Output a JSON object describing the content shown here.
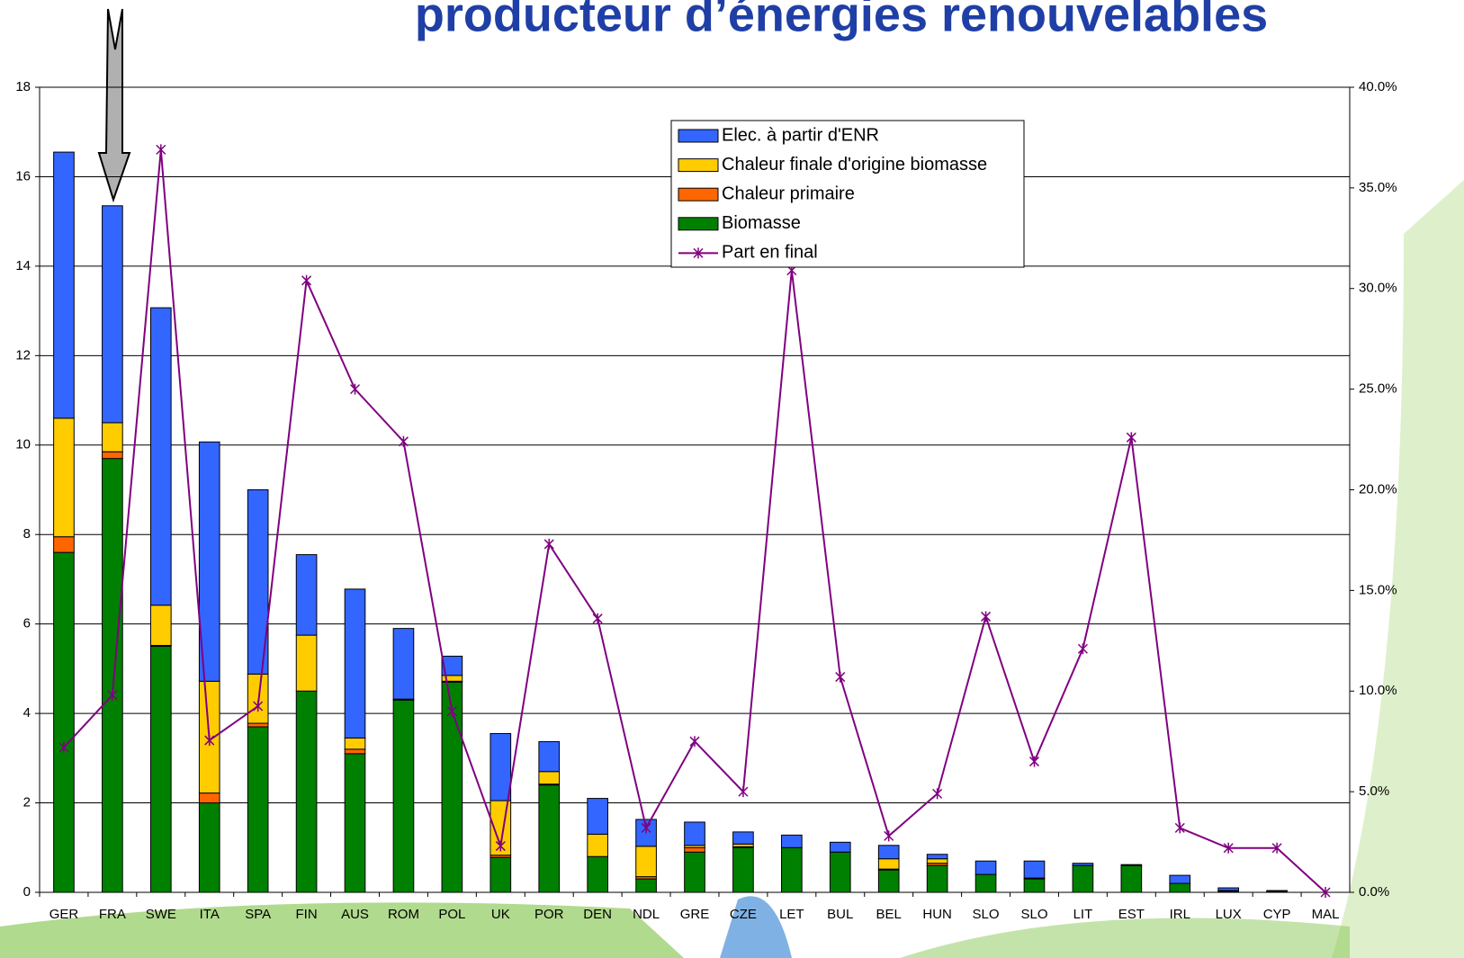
{
  "chart_data": {
    "type": "bar",
    "stacked": true,
    "title": "producteur d’énergies renouvelables",
    "categories": [
      "GER",
      "FRA",
      "SWE",
      "ITA",
      "SPA",
      "FIN",
      "AUS",
      "ROM",
      "POL",
      "UK",
      "POR",
      "DEN",
      "NDL",
      "GRE",
      "CZE",
      "LET",
      "BUL",
      "BEL",
      "HUN",
      "SLO",
      "SLO",
      "LIT",
      "EST",
      "IRL",
      "LUX",
      "CYP",
      "MAL"
    ],
    "series": [
      {
        "name": "Biomasse",
        "color": "#008000",
        "values": [
          7.6,
          9.7,
          5.5,
          2.0,
          3.7,
          4.5,
          3.1,
          4.3,
          4.7,
          0.78,
          2.4,
          0.8,
          0.3,
          0.9,
          1.0,
          1.0,
          0.9,
          0.5,
          0.6,
          0.4,
          0.3,
          0.6,
          0.6,
          0.2,
          0.02,
          0.02,
          0
        ]
      },
      {
        "name": "Chaleur primaire",
        "color": "#ff6600",
        "values": [
          0.35,
          0.15,
          0.02,
          0.22,
          0.08,
          0,
          0.1,
          0.02,
          0.02,
          0.05,
          0.02,
          0,
          0.05,
          0.1,
          0.02,
          0,
          0,
          0.02,
          0.05,
          0,
          0.02,
          0,
          0,
          0,
          0,
          0,
          0
        ]
      },
      {
        "name": "Chaleur finale d'origine biomasse",
        "color": "#ffcc00",
        "values": [
          2.65,
          0.65,
          0.9,
          2.5,
          1.1,
          1.25,
          0.25,
          0,
          0.13,
          1.22,
          0.28,
          0.5,
          0.68,
          0.05,
          0.06,
          0,
          0,
          0.23,
          0.1,
          0,
          0,
          0,
          0,
          0,
          0.02,
          0.02,
          0
        ]
      },
      {
        "name": "Elec. à partir d'ENR",
        "color": "#3366ff",
        "values": [
          5.95,
          4.85,
          6.65,
          5.35,
          4.12,
          1.8,
          3.33,
          1.58,
          0.43,
          1.5,
          0.67,
          0.8,
          0.6,
          0.52,
          0.27,
          0.28,
          0.22,
          0.3,
          0.1,
          0.3,
          0.38,
          0.05,
          0.02,
          0.18,
          0.06,
          0,
          0
        ]
      },
      {
        "name": "Part en final",
        "type": "line",
        "axis": "y2",
        "color": "#800080",
        "values": [
          7.2,
          9.8,
          36.9,
          7.55,
          9.25,
          30.4,
          25.0,
          22.4,
          9.0,
          2.3,
          17.3,
          13.6,
          3.2,
          7.5,
          5.0,
          30.9,
          10.7,
          2.8,
          4.9,
          13.7,
          6.5,
          12.1,
          22.6,
          3.2,
          2.2,
          2.2,
          0
        ]
      }
    ],
    "ylim": [
      0,
      18
    ],
    "yticks": [
      0,
      2,
      4,
      6,
      8,
      10,
      12,
      14,
      16,
      18
    ],
    "y2lim": [
      0,
      40
    ],
    "y2ticks": [
      {
        "value": 0,
        "label": "0.0%"
      },
      {
        "value": 5,
        "label": "5.0%"
      },
      {
        "value": 10,
        "label": "10.0%"
      },
      {
        "value": 15,
        "label": "15.0%"
      },
      {
        "value": 20,
        "label": "20.0%"
      },
      {
        "value": 25,
        "label": "25.0%"
      },
      {
        "value": 30,
        "label": "30.0%"
      },
      {
        "value": 35,
        "label": "35.0%"
      },
      {
        "value": 40,
        "label": "40.0%"
      }
    ],
    "grid": true
  }
}
